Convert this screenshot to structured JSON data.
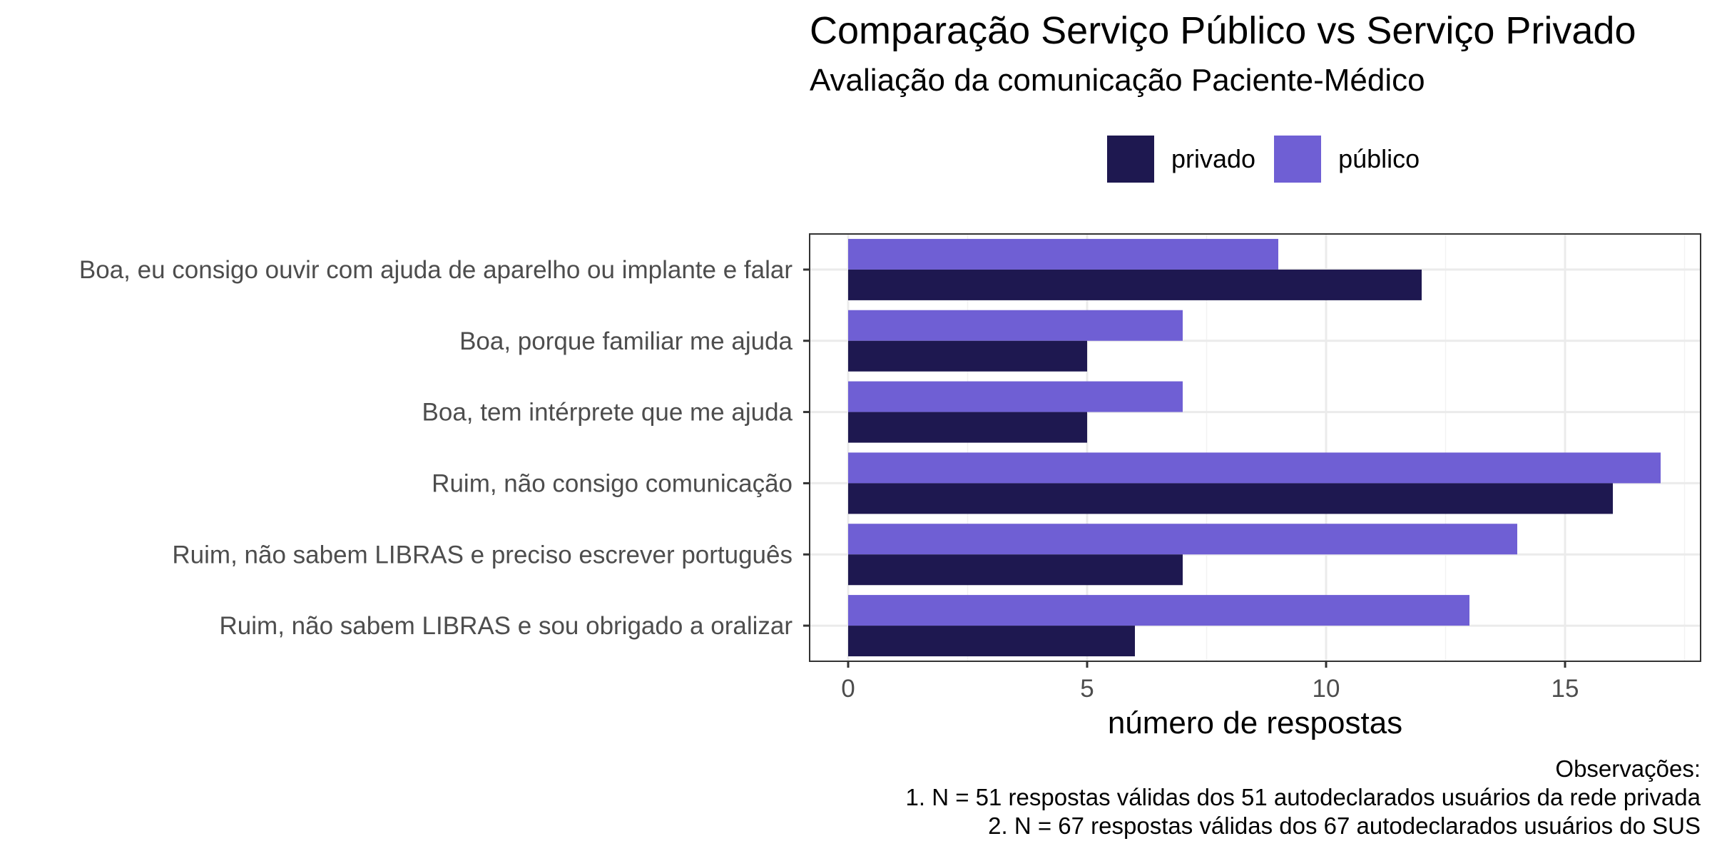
{
  "chart_data": {
    "type": "bar",
    "orientation": "horizontal",
    "title": "Comparação Serviço Público vs Serviço Privado",
    "subtitle": "Avaliação da comunicação Paciente-Médico",
    "xlabel": "número de respostas",
    "ylabel": "",
    "xlim": [
      0,
      18
    ],
    "x_ticks": [
      0,
      5,
      10,
      15
    ],
    "x_tick_labels": [
      "0",
      "5",
      "10",
      "15"
    ],
    "grid": true,
    "legend_position": "top",
    "categories": [
      "Boa, eu consigo ouvir com ajuda de aparelho ou implante e falar",
      "Boa, porque familiar me ajuda",
      "Boa, tem intérprete que me ajuda",
      "Ruim, não consigo comunicação",
      "Ruim, não sabem LIBRAS e preciso escrever português",
      "Ruim, não sabem LIBRAS e sou obrigado a oralizar"
    ],
    "series": [
      {
        "name": "privado",
        "color": "#1e1850",
        "values": [
          12,
          5,
          5,
          16,
          7,
          6
        ]
      },
      {
        "name": "público",
        "color": "#6f5fd4",
        "values": [
          9,
          7,
          7,
          17,
          14,
          13
        ]
      }
    ],
    "caption": [
      "Observações:",
      "1. N = 51 respostas válidas dos 51 autodeclarados usuários da rede privada",
      "2. N = 67 respostas válidas dos 67 autodeclarados usuários do SUS"
    ]
  }
}
